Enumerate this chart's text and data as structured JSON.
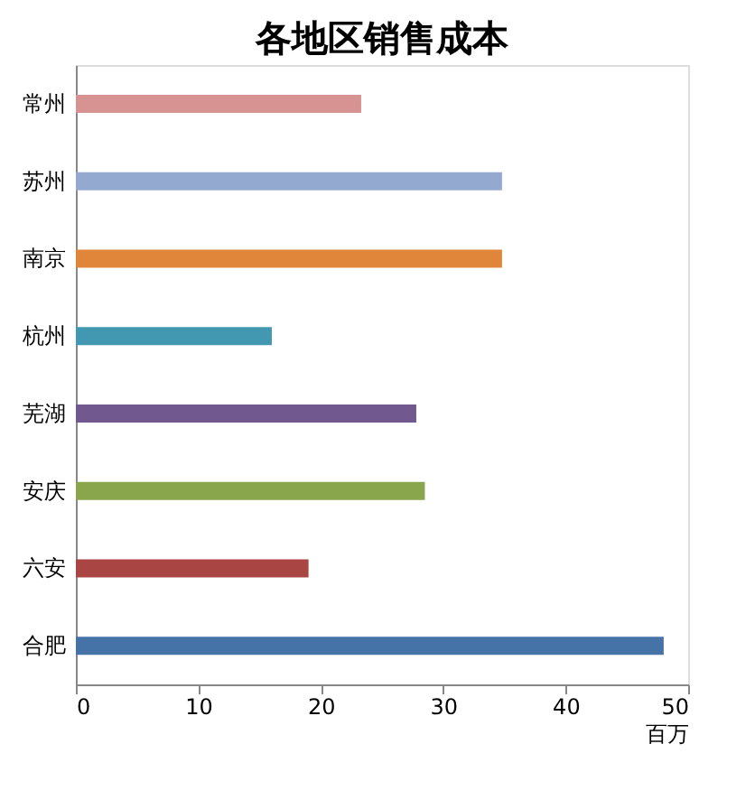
{
  "chart_data": {
    "type": "bar",
    "orientation": "horizontal",
    "title": "各地区销售成本",
    "xlabel": "百万",
    "categories": [
      "常州",
      "苏州",
      "南京",
      "杭州",
      "芜湖",
      "安庆",
      "六安",
      "合肥"
    ],
    "values": [
      23.3,
      34.8,
      34.8,
      16,
      27.8,
      28.5,
      19,
      48
    ],
    "colors": [
      "#d79392",
      "#93a9cf",
      "#e0863b",
      "#4298b0",
      "#71588f",
      "#8aa64d",
      "#a94543",
      "#4572a7"
    ],
    "xlim": [
      0,
      50
    ],
    "xticks": [
      0,
      10,
      20,
      30,
      40,
      50
    ],
    "grid": false
  }
}
